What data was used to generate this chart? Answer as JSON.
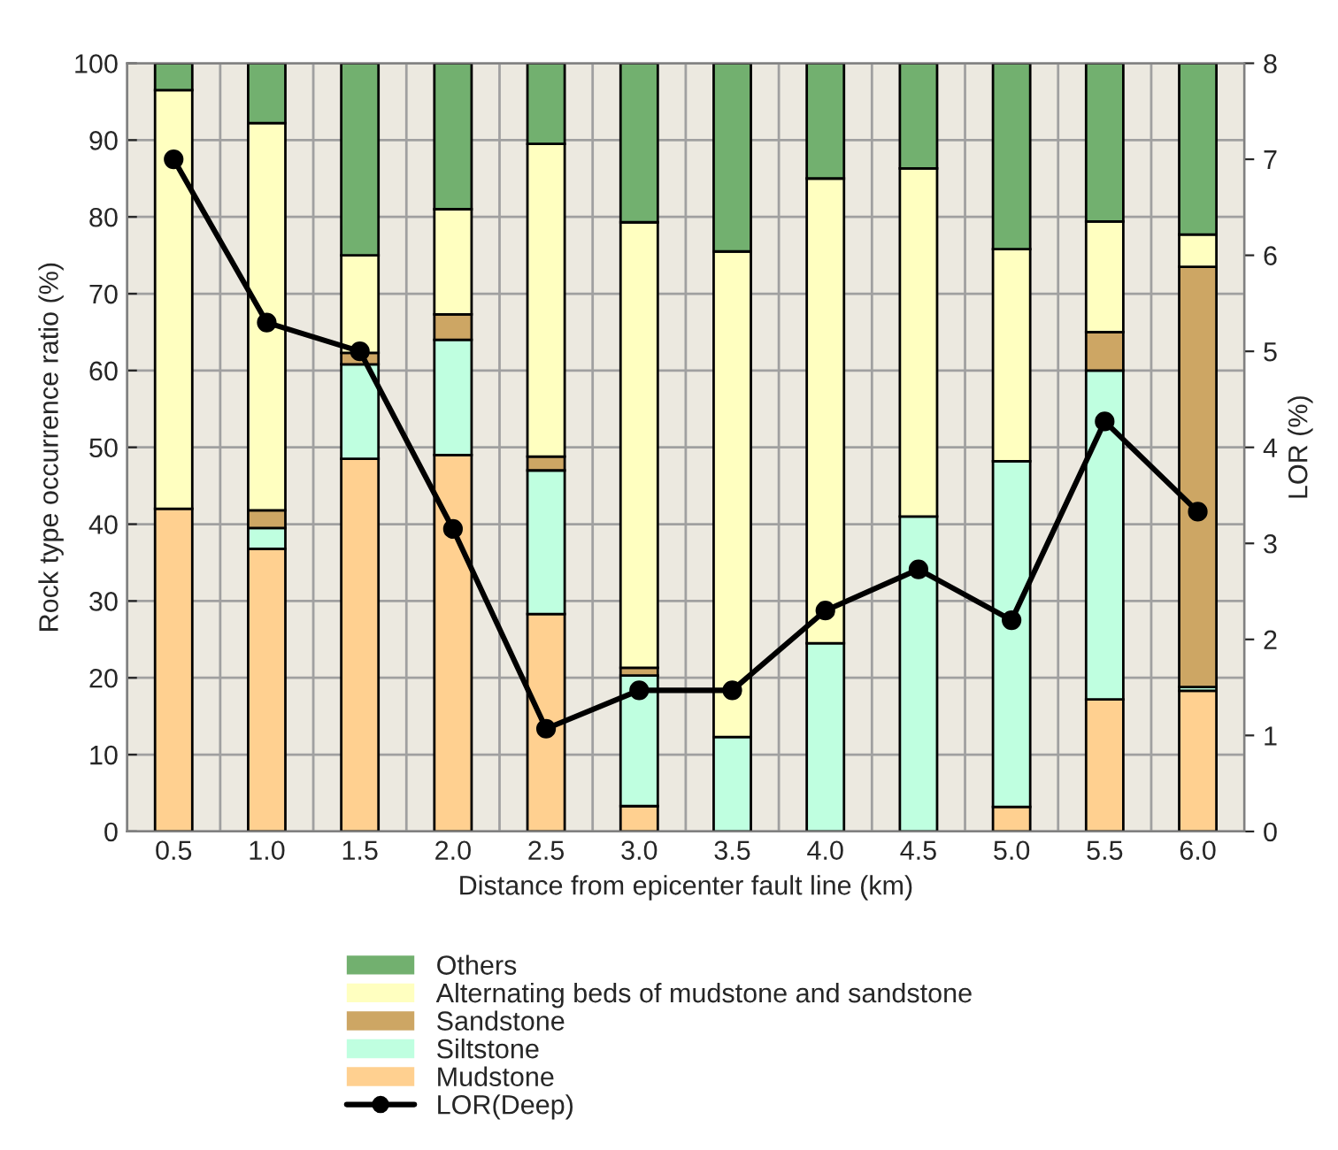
{
  "chart_data": {
    "type": "bar",
    "stacked": true,
    "xlabel": "Distance from epicenter fault line (km)",
    "ylabel": "Rock type occurrence ratio (%)",
    "y2label": "LOR (%)",
    "categories": [
      "0.5",
      "1.0",
      "1.5",
      "2.0",
      "2.5",
      "3.0",
      "3.5",
      "4.0",
      "4.5",
      "5.0",
      "5.5",
      "6.0"
    ],
    "series": [
      {
        "name": "Mudstone",
        "color": "#ffd090",
        "values": [
          42,
          36.8,
          48.5,
          49,
          28.3,
          3.3,
          0,
          0,
          0,
          3.2,
          17.2,
          18.3
        ]
      },
      {
        "name": "Siltstone",
        "color": "#bfffe0",
        "values": [
          0,
          2.7,
          12.3,
          15,
          18.7,
          17,
          12.3,
          24.5,
          41,
          45,
          42.8,
          0.5
        ]
      },
      {
        "name": "Sandstone",
        "color": "#cda664",
        "values": [
          0,
          2.3,
          1.5,
          3.3,
          1.8,
          1,
          null,
          0,
          0,
          0,
          5,
          54.7
        ]
      },
      {
        "name": "Alternating beds of mudstone and sandstone",
        "color": "#ffffc0",
        "values": [
          54.5,
          50.4,
          12.7,
          13.7,
          40.7,
          58,
          63.2,
          60.5,
          45.3,
          27.6,
          14.4,
          4.2
        ]
      },
      {
        "name": "Others",
        "color": "#72b06f",
        "values": [
          3.5,
          7.8,
          25,
          19,
          10.5,
          20.7,
          24.5,
          15,
          13.7,
          24.2,
          20.6,
          22.3
        ]
      },
      {
        "name": "LOR(Deep)",
        "type": "line",
        "axis": "y2",
        "color": "#000000",
        "marker": "circle",
        "values": [
          7.0,
          5.3,
          5.0,
          3.15,
          1.07,
          1.47,
          1.47,
          2.3,
          2.73,
          2.2,
          4.27,
          3.33
        ]
      }
    ],
    "ylim": [
      0,
      100
    ],
    "yticks": [
      0,
      10,
      20,
      30,
      40,
      50,
      60,
      70,
      80,
      90,
      100
    ],
    "y2lim": [
      0,
      8
    ],
    "y2ticks": [
      0,
      1,
      2,
      3,
      4,
      5,
      6,
      7,
      8
    ],
    "grid": true,
    "legend": "bottom"
  }
}
